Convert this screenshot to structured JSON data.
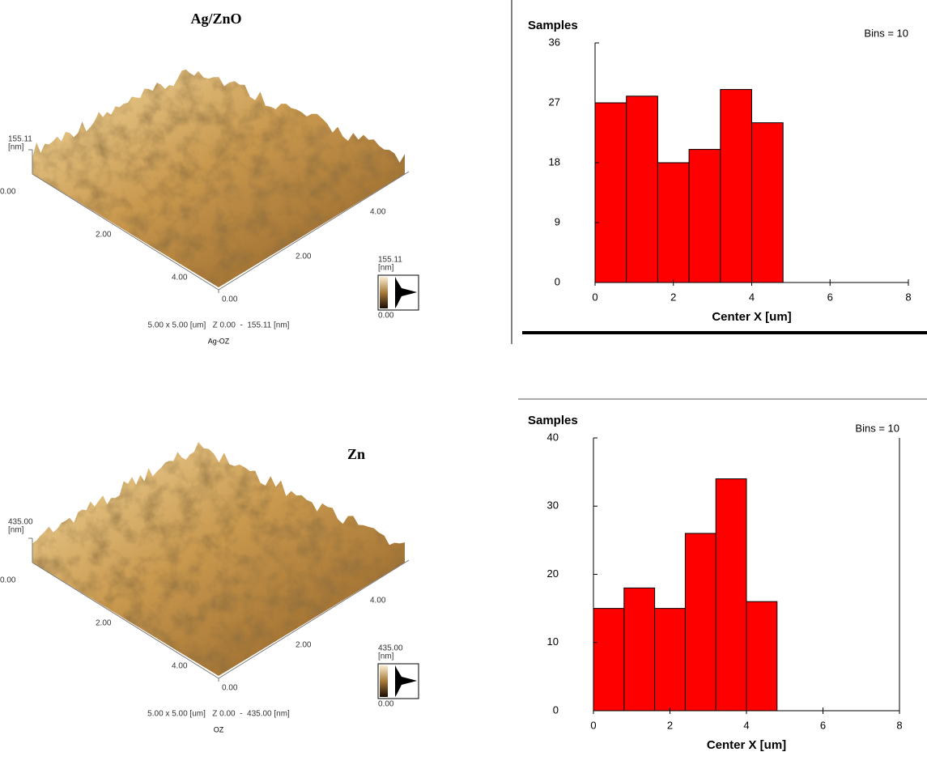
{
  "afm_panels": [
    {
      "title": "Ag/ZnO",
      "z_top": "155.11",
      "z_unit": "[nm]",
      "z_bottom": "0.00",
      "left_axis": [
        "2.00",
        "4.00"
      ],
      "right_axis": [
        "0.00",
        "2.00",
        "4.00"
      ],
      "colorbar": {
        "max": "155.11",
        "unit": "[nm]",
        "min": "0.00"
      },
      "scan_info": "5.00 x 5.00 [um]   Z 0.00  -  155.11 [nm]",
      "sample_name": "Ag-OZ"
    },
    {
      "title": "Zn",
      "z_top": "435.00",
      "z_unit": "[nm]",
      "z_bottom": "0.00",
      "left_axis": [
        "2.00",
        "4.00"
      ],
      "right_axis": [
        "0.00",
        "2.00",
        "4.00"
      ],
      "colorbar": {
        "max": "435.00",
        "unit": "[nm]",
        "min": "0.00"
      },
      "scan_info": "5.00 x 5.00 [um]   Z 0.00  -  435.00 [nm]",
      "sample_name": "OZ"
    }
  ],
  "chart_data": [
    {
      "type": "histogram",
      "ylabel": "Samples",
      "xlabel": "Center X [um]",
      "annotation": "Bins = 10",
      "bins": [
        0,
        0.8,
        1.6,
        2.4,
        3.2,
        4,
        4.8,
        5.6,
        6.4,
        7.2,
        8
      ],
      "values": [
        27,
        28,
        18,
        20,
        29,
        24,
        0,
        0,
        0,
        0
      ],
      "color": "#ff0000",
      "xlim": [
        0,
        8
      ],
      "xticks": [
        0,
        2,
        4,
        6,
        8
      ],
      "ylim": [
        0,
        36
      ],
      "yticks": [
        0,
        9,
        18,
        27,
        36
      ]
    },
    {
      "type": "histogram",
      "ylabel": "Samples",
      "xlabel": "Center X [um]",
      "annotation": "Bins = 10",
      "bins": [
        0,
        0.8,
        1.6,
        2.4,
        3.2,
        4,
        4.8,
        5.6,
        6.4,
        7.2,
        8
      ],
      "values": [
        15,
        18,
        15,
        26,
        34,
        16,
        0,
        0,
        0,
        0
      ],
      "color": "#ff0000",
      "xlim": [
        0,
        8
      ],
      "xticks": [
        0,
        2,
        4,
        6,
        8
      ],
      "ylim": [
        0,
        40
      ],
      "yticks": [
        0,
        10,
        20,
        30,
        40
      ]
    }
  ]
}
